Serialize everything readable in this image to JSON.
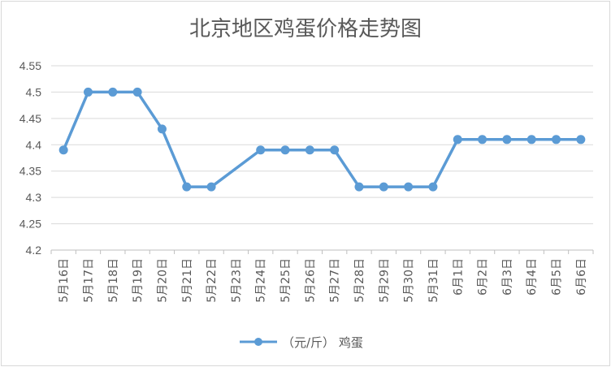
{
  "chart_data": {
    "type": "line",
    "title": "北京地区鸡蛋价格走势图",
    "categories": [
      "5月16日",
      "5月17日",
      "5月18日",
      "5月19日",
      "5月20日",
      "5月21日",
      "5月22日",
      "5月23日",
      "5月24日",
      "5月25日",
      "5月26日",
      "5月27日",
      "5月28日",
      "5月29日",
      "5月30日",
      "5月31日",
      "6月1日",
      "6月2日",
      "6月3日",
      "6月4日",
      "6月5日",
      "6月6日"
    ],
    "series": [
      {
        "name": "（元/斤） 鸡蛋",
        "values": [
          4.39,
          4.5,
          4.5,
          4.5,
          4.43,
          4.32,
          4.32,
          null,
          4.39,
          4.39,
          4.39,
          4.39,
          4.32,
          4.32,
          4.32,
          4.32,
          4.41,
          4.41,
          4.41,
          4.41,
          4.41,
          4.41
        ],
        "color": "#5b9bd5"
      }
    ],
    "ylim": [
      4.2,
      4.55
    ],
    "yticks": [
      "4.2",
      "4.25",
      "4.3",
      "4.35",
      "4.4",
      "4.45",
      "4.5",
      "4.55"
    ],
    "xlabel": "",
    "ylabel": "",
    "grid": true,
    "legend": "bottom"
  }
}
